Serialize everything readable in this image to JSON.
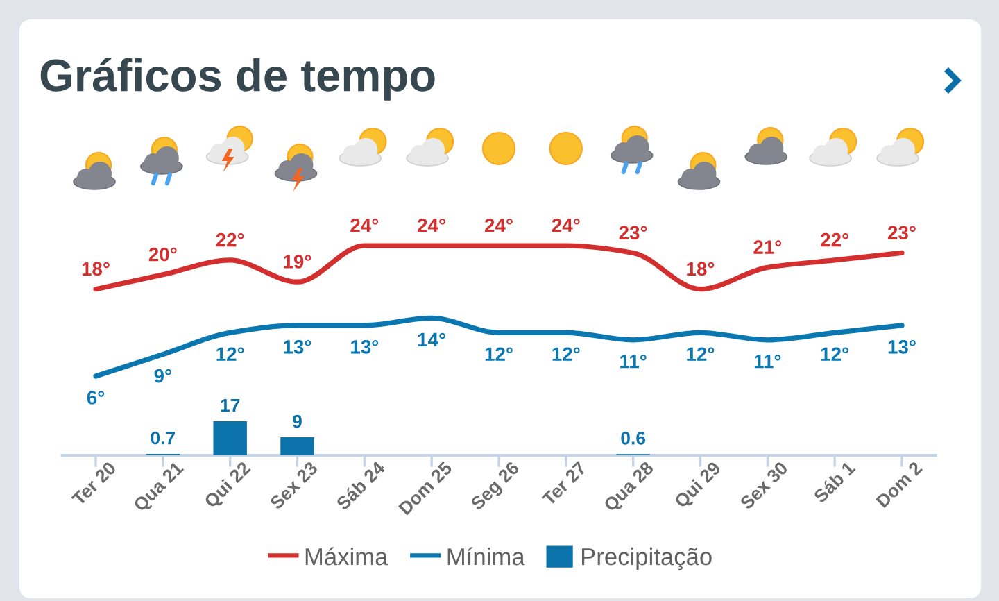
{
  "chart_data": [
    {
      "type": "line",
      "title": "Gráficos de tempo",
      "categories": [
        null,
        null,
        null,
        null,
        null,
        null,
        null,
        null,
        null,
        null,
        null,
        null,
        null
      ],
      "series": [
        {
          "name": "Máxima",
          "color": "#d32f2f",
          "values": [
            18,
            20,
            22,
            19,
            24,
            24,
            24,
            24,
            23,
            18,
            21,
            22,
            23
          ],
          "value_labels": [
            "18°",
            "20°",
            "22°",
            "19°",
            "24°",
            "24°",
            "24°",
            "24°",
            "23°",
            "18°",
            "21°",
            "22°",
            "23°"
          ]
        },
        {
          "name": "Mínima",
          "color": "#0a77b0",
          "values": [
            6,
            9,
            12,
            13,
            13,
            14,
            12,
            12,
            11,
            12,
            11,
            12,
            13
          ],
          "value_labels": [
            "6°",
            "9°",
            "12°",
            "13°",
            "13°",
            "14°",
            "12°",
            "12°",
            "11°",
            "12°",
            "11°",
            "12°",
            "13°"
          ]
        }
      ],
      "tick_labels": false,
      "legend": "bottom"
    },
    {
      "type": "bar",
      "categories": [
        "Ter 20",
        "Qua 21",
        "Qui 22",
        "Sex 23",
        "Sáb 24",
        "Dom 25",
        "Seg 26",
        "Ter 27",
        "Qua 28",
        "Qui 29",
        "Sex 30",
        "Sáb 1",
        "Dom 2"
      ],
      "series": [
        {
          "name": "Precipitação",
          "color": "#0b72aa",
          "values": [
            null,
            0.7,
            17,
            9,
            null,
            null,
            null,
            null,
            0.6,
            null,
            null,
            null,
            null
          ],
          "value_labels": [
            null,
            "0.7",
            "17",
            "9",
            null,
            null,
            null,
            null,
            "0.6",
            null,
            null,
            null,
            null
          ]
        }
      ],
      "ylim": [
        0,
        17
      ],
      "tick_labels": "x",
      "legend": "bottom"
    }
  ]
}
